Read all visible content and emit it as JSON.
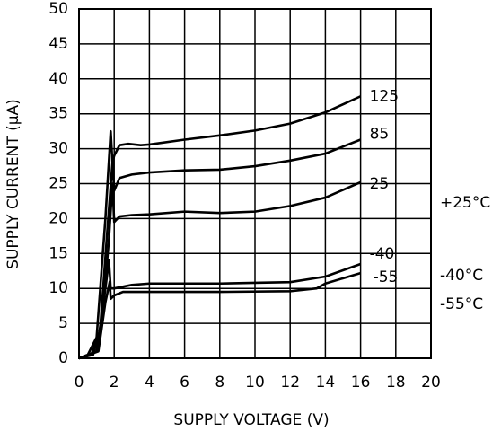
{
  "chart_data": {
    "type": "line",
    "x_label": "SUPPLY VOLTAGE (V)",
    "y_label": "SUPPLY CURRENT (μA)",
    "xlim": [
      0,
      20
    ],
    "xticks": [
      0,
      2,
      4,
      6,
      8,
      10,
      12,
      14,
      16,
      18,
      20
    ],
    "ylim": [
      0,
      50
    ],
    "yticks": [
      0,
      5,
      10,
      15,
      20,
      25,
      30,
      35,
      40,
      45,
      50
    ],
    "grid": true,
    "series": [
      {
        "name": "125",
        "color": "#000000",
        "x": [
          0,
          0.5,
          1,
          1.5,
          1.8,
          1.9,
          2,
          2.3,
          2.8,
          3.5,
          4,
          6,
          8,
          10,
          12,
          14,
          16
        ],
        "values": [
          0,
          0.5,
          3,
          20,
          32.5,
          28,
          29,
          30.5,
          30.7,
          30.5,
          30.6,
          31.3,
          31.9,
          32.6,
          33.6,
          35.2,
          37.5
        ]
      },
      {
        "name": "85",
        "color": "#000000",
        "x": [
          0,
          0.7,
          1.2,
          1.6,
          1.9,
          2,
          2.3,
          3,
          4,
          6,
          8,
          10,
          12,
          14,
          16
        ],
        "values": [
          0,
          0.5,
          4,
          18,
          28,
          24,
          25.8,
          26.3,
          26.6,
          26.9,
          27,
          27.5,
          28.3,
          29.3,
          31.3
        ]
      },
      {
        "name": "25",
        "color": "#000000",
        "x": [
          0,
          0.8,
          1.3,
          1.7,
          1.9,
          2,
          2.3,
          3,
          4,
          6,
          8,
          10,
          12,
          14,
          16
        ],
        "values": [
          0,
          0.5,
          5,
          17,
          25,
          19.5,
          20.3,
          20.5,
          20.6,
          21,
          20.8,
          21,
          21.8,
          23,
          25.2
        ]
      },
      {
        "name": "-40",
        "color": "#000000",
        "x": [
          0,
          1,
          1.4,
          1.7,
          1.8,
          2,
          3,
          4,
          6,
          8,
          10,
          12,
          14,
          16
        ],
        "values": [
          0,
          1,
          8,
          14,
          10,
          10,
          10.5,
          10.7,
          10.7,
          10.7,
          10.8,
          10.9,
          11.7,
          13.5
        ]
      },
      {
        "name": "-55",
        "color": "#000000",
        "x": [
          0,
          1.1,
          1.5,
          1.75,
          1.8,
          2,
          2.5,
          4,
          8,
          12,
          13.5,
          14,
          16
        ],
        "values": [
          0,
          1,
          8,
          11,
          8.5,
          9,
          9.5,
          9.5,
          9.5,
          9.6,
          10,
          10.7,
          12.2
        ]
      }
    ],
    "annotations": [
      "+25°C",
      "-40°C",
      "-55°C"
    ]
  }
}
